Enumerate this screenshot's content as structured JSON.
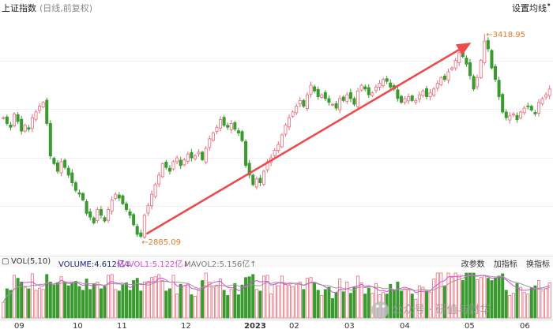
{
  "header": {
    "title": "上证指数",
    "subtitle": "(日线,前复权)",
    "settings_label": "设置均线",
    "more_glyph": "•"
  },
  "annotations": {
    "low_label": "2885.09",
    "high_label": "3418.95",
    "arrow_glyph": "←"
  },
  "volume_header": {
    "indicator": "VOL(5,10)",
    "volume": "VOLUME:4.612亿↓",
    "mavol1": "MAVOL1:5.122亿↓",
    "mavol2": "MAVOL2:5.156亿↑",
    "buttons": [
      "改参数",
      "加指标",
      "换指标"
    ]
  },
  "x_axis": [
    {
      "label": "09",
      "bold": false
    },
    {
      "label": "10",
      "bold": false
    },
    {
      "label": "11",
      "bold": false
    },
    {
      "label": "12",
      "bold": false
    },
    {
      "label": "2023",
      "bold": true
    },
    {
      "label": "02",
      "bold": false
    },
    {
      "label": "03",
      "bold": false
    },
    {
      "label": "04",
      "bold": false
    },
    {
      "label": "05",
      "bold": false
    },
    {
      "label": "06",
      "bold": false
    }
  ],
  "watermark": "公众号 · 研值与财华",
  "colors": {
    "up": "#e86a7a",
    "down": "#3a9a30",
    "arrow": "#ee4c4c",
    "mavol1": "#d64ad6",
    "mavol2": "#8a8a8a",
    "annotation": "#e07b2b"
  },
  "chart_data": {
    "type": "candlestick",
    "closes": [
      3200,
      3185,
      3175,
      3210,
      3190,
      3165,
      3180,
      3170,
      3200,
      3215,
      3230,
      3240,
      3185,
      3100,
      3080,
      3060,
      3085,
      3070,
      3050,
      3030,
      3010,
      3000,
      2985,
      2950,
      2940,
      2925,
      2960,
      2945,
      2930,
      2960,
      2985,
      3000,
      2990,
      2975,
      2960,
      2945,
      2920,
      2895,
      2890,
      2945,
      2970,
      3000,
      3025,
      3050,
      3080,
      3070,
      3060,
      3085,
      3095,
      3075,
      3090,
      3105,
      3095,
      3100,
      3110,
      3090,
      3120,
      3145,
      3160,
      3175,
      3195,
      3180,
      3175,
      3185,
      3170,
      3160,
      3140,
      3075,
      3050,
      3025,
      3040,
      3030,
      3060,
      3085,
      3095,
      3115,
      3130,
      3155,
      3180,
      3200,
      3215,
      3230,
      3245,
      3230,
      3260,
      3285,
      3270,
      3255,
      3260,
      3250,
      3240,
      3235,
      3225,
      3250,
      3245,
      3260,
      3250,
      3235,
      3270,
      3285,
      3275,
      3260,
      3265,
      3280,
      3290,
      3300,
      3295,
      3280,
      3275,
      3250,
      3240,
      3250,
      3255,
      3245,
      3245,
      3260,
      3270,
      3255,
      3265,
      3275,
      3290,
      3305,
      3300,
      3320,
      3330,
      3350,
      3370,
      3360,
      3340,
      3310,
      3275,
      3305,
      3350,
      3400,
      3380,
      3330,
      3300,
      3255,
      3215,
      3200,
      3205,
      3210,
      3195,
      3215,
      3225,
      3230,
      3220,
      3210,
      3240,
      3250,
      3260,
      3275
    ],
    "low_value": 2885.09,
    "high_value": 3418.95,
    "ylim": [
      2860,
      3450
    ],
    "trend_line": {
      "from": 2885.09,
      "to": 3418.95
    }
  }
}
